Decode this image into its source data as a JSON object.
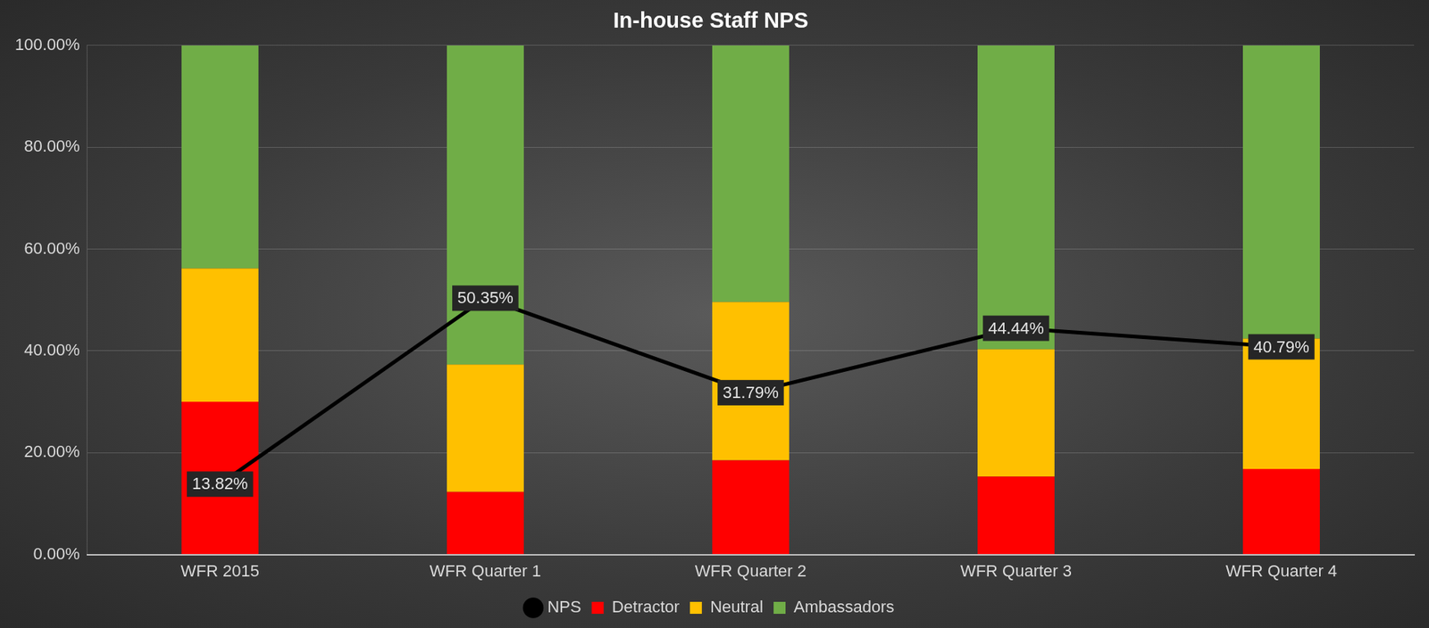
{
  "chart_data": {
    "type": "bar",
    "title": "In-house Staff NPS",
    "categories": [
      "WFR 2015",
      "WFR Quarter 1",
      "WFR Quarter 2",
      "WFR Quarter 3",
      "WFR Quarter 4"
    ],
    "stacked": true,
    "grid": true,
    "legend": "bottom",
    "ylim": [
      0,
      100
    ],
    "yticks": [
      {
        "value": 0,
        "label": "0.00%"
      },
      {
        "value": 20,
        "label": "20.00%"
      },
      {
        "value": 40,
        "label": "40.00%"
      },
      {
        "value": 60,
        "label": "60.00%"
      },
      {
        "value": 80,
        "label": "80.00%"
      },
      {
        "value": 100,
        "label": "100.00%"
      }
    ],
    "series": [
      {
        "name": "Detractor",
        "color": "#ff0000",
        "values": [
          30.0,
          12.3,
          18.5,
          15.3,
          16.8
        ]
      },
      {
        "name": "Neutral",
        "color": "#ffc000",
        "values": [
          26.2,
          25.0,
          31.1,
          25.0,
          25.6
        ]
      },
      {
        "name": "Ambassadors",
        "color": "#70ad47",
        "values": [
          43.8,
          62.7,
          50.4,
          59.7,
          57.6
        ]
      },
      {
        "name": "NPS",
        "type": "line",
        "color": "#000000",
        "data_labels": true,
        "values": [
          13.82,
          50.35,
          31.79,
          44.44,
          40.79
        ],
        "value_labels": [
          "13.82%",
          "50.35%",
          "31.79%",
          "44.44%",
          "40.79%"
        ]
      }
    ]
  }
}
